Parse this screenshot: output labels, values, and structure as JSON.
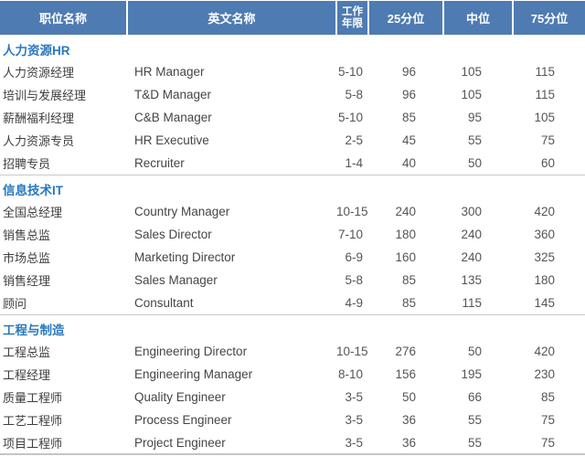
{
  "colors": {
    "header_bg": "#4e7bb2",
    "header_fg": "#ffffff",
    "section_title_fg": "#2878be",
    "divider": "#c9c9c9"
  },
  "table": {
    "columns": [
      {
        "label": "职位名称"
      },
      {
        "label": "英文名称"
      },
      {
        "label": "工作年限",
        "line1": "工作",
        "line2": "年限"
      },
      {
        "label": "25分位"
      },
      {
        "label": "中位"
      },
      {
        "label": "75分位"
      }
    ],
    "sections": [
      {
        "title": "人力资源HR",
        "rows": [
          {
            "position_cn": "人力资源经理",
            "position_en": "HR Manager",
            "years": "5-10",
            "p25": "96",
            "median": "105",
            "p75": "115"
          },
          {
            "position_cn": "培训与发展经理",
            "position_en": "T&D Manager",
            "years": "5-8",
            "p25": "96",
            "median": "105",
            "p75": "115"
          },
          {
            "position_cn": "薪酬福利经理",
            "position_en": "C&B Manager",
            "years": "5-10",
            "p25": "85",
            "median": "95",
            "p75": "105"
          },
          {
            "position_cn": "人力资源专员",
            "position_en": "HR Executive",
            "years": "2-5",
            "p25": "45",
            "median": "55",
            "p75": "75"
          },
          {
            "position_cn": "招聘专员",
            "position_en": "Recruiter",
            "years": "1-4",
            "p25": "40",
            "median": "50",
            "p75": "60"
          }
        ]
      },
      {
        "title": "信息技术IT",
        "rows": [
          {
            "position_cn": "全国总经理",
            "position_en": "Country Manager",
            "years": "10-15",
            "p25": "240",
            "median": "300",
            "p75": "420"
          },
          {
            "position_cn": "销售总监",
            "position_en": "Sales Director",
            "years": "7-10",
            "p25": "180",
            "median": "240",
            "p75": "360"
          },
          {
            "position_cn": "市场总监",
            "position_en": "Marketing Director",
            "years": "6-9",
            "p25": "160",
            "median": "240",
            "p75": "325"
          },
          {
            "position_cn": "销售经理",
            "position_en": "Sales Manager",
            "years": "5-8",
            "p25": "85",
            "median": "135",
            "p75": "180"
          },
          {
            "position_cn": "顾问",
            "position_en": "Consultant",
            "years": "4-9",
            "p25": "85",
            "median": "115",
            "p75": "145"
          }
        ]
      },
      {
        "title": "工程与制造",
        "rows": [
          {
            "position_cn": "工程总监",
            "position_en": "Engineering Director",
            "years": "10-15",
            "p25": "276",
            "median": "50",
            "p75": "420"
          },
          {
            "position_cn": "工程经理",
            "position_en": "Engineering Manager",
            "years": "8-10",
            "p25": "156",
            "median": "195",
            "p75": "230"
          },
          {
            "position_cn": "质量工程师",
            "position_en": "Quality Engineer",
            "years": "3-5",
            "p25": "50",
            "median": "66",
            "p75": "85"
          },
          {
            "position_cn": "工艺工程师",
            "position_en": "Process Engineer",
            "years": "3-5",
            "p25": "36",
            "median": "55",
            "p75": "75"
          },
          {
            "position_cn": "项目工程师",
            "position_en": "Project Engineer",
            "years": "3-5",
            "p25": "36",
            "median": "55",
            "p75": "75"
          }
        ]
      }
    ]
  }
}
